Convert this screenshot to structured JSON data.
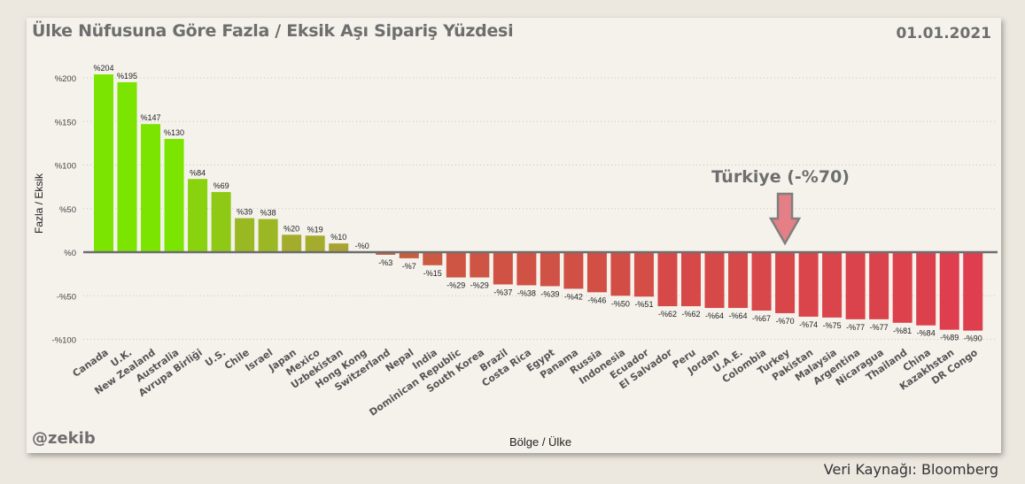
{
  "header": {
    "title": "Ülke Nüfusuna Göre Fazla / Eksik Aşı Sipariş Yüzdesi",
    "date": "01.01.2021"
  },
  "footer": {
    "handle": "@zekib",
    "source": "Veri Kaynağı: Bloomberg"
  },
  "annotation": {
    "text": "Türkiye (-%70)"
  },
  "colors": {
    "positive_high": "#7be400",
    "positive_mid": "#b09a3a",
    "negative_mid": "#c6603e",
    "negative_high": "#de3e4e",
    "arrow_fill": "#e57f86",
    "arrow_stroke": "#7f7f7f"
  },
  "chart_data": {
    "type": "bar",
    "title": "Ülke Nüfusuna Göre Fazla / Eksik Aşı Sipariş Yüzdesi",
    "xlabel": "Bölge / Ülke",
    "ylabel": "Fazla / Eksik",
    "ylim": [
      -100,
      210
    ],
    "yticks": [
      {
        "value": 200,
        "label": "%200"
      },
      {
        "value": 150,
        "label": "%150"
      },
      {
        "value": 100,
        "label": "%100"
      },
      {
        "value": 50,
        "label": "%50"
      },
      {
        "value": 0,
        "label": "%0"
      },
      {
        "value": -50,
        "label": "-%50"
      },
      {
        "value": -100,
        "label": "-%100"
      }
    ],
    "grid": true,
    "categories": [
      "Canada",
      "U.K.",
      "New Zealand",
      "Australia",
      "Avrupa Birliği",
      "U.S.",
      "Chile",
      "Israel",
      "Japan",
      "Mexico",
      "Uzbekistan",
      "Hong Kong",
      "Switzerland",
      "Nepal",
      "India",
      "Dominican Republic",
      "South Korea",
      "Brazil",
      "Costa Rica",
      "Egypt",
      "Panama",
      "Russia",
      "Indonesia",
      "Ecuador",
      "El Salvador",
      "Peru",
      "Jordan",
      "U.A.E.",
      "Colombia",
      "Turkey",
      "Pakistan",
      "Malaysia",
      "Argentina",
      "Nicaragua",
      "Thailand",
      "China",
      "Kazakhstan",
      "DR Congo"
    ],
    "values": [
      204,
      195,
      147,
      130,
      84,
      69,
      39,
      38,
      20,
      19,
      10,
      0,
      -3,
      -7,
      -15,
      -29,
      -29,
      -37,
      -38,
      -39,
      -42,
      -46,
      -50,
      -51,
      -62,
      -62,
      -64,
      -64,
      -67,
      -70,
      -74,
      -75,
      -77,
      -77,
      -81,
      -84,
      -89,
      -90
    ],
    "labels": [
      "%204",
      "%195",
      "%147",
      "%130",
      "%84",
      "%69",
      "%39",
      "%38",
      "%20",
      "%19",
      "%10",
      "-%0",
      "-%3",
      "-%7",
      "-%15",
      "-%29",
      "-%29",
      "-%37",
      "-%38",
      "-%39",
      "-%42",
      "-%46",
      "-%50",
      "-%51",
      "-%62",
      "-%62",
      "-%64",
      "-%64",
      "-%67",
      "-%70",
      "-%74",
      "-%75",
      "-%77",
      "-%77",
      "-%81",
      "-%84",
      "-%89",
      "-%90"
    ]
  }
}
